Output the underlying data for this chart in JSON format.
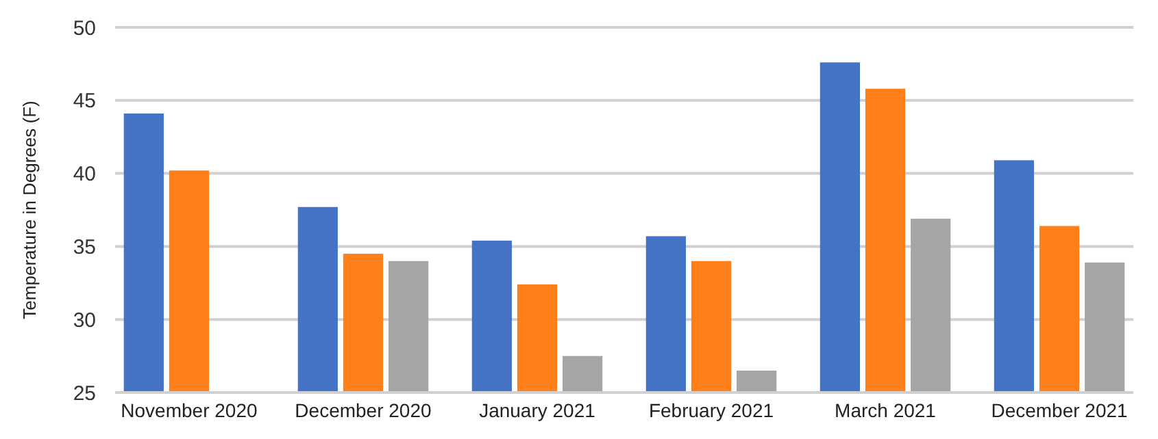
{
  "chart_data": {
    "type": "bar",
    "ylabel": "Temperature in Degrees (F)",
    "categories": [
      "November 2020",
      "December 2020",
      "January 2021",
      "February 2021",
      "March 2021",
      "December 2021"
    ],
    "series": [
      {
        "color": "#4472c4",
        "values": [
          44.1,
          37.7,
          35.4,
          35.7,
          47.6,
          40.9
        ]
      },
      {
        "color": "#ff7f1a",
        "values": [
          40.2,
          34.5,
          32.4,
          34.0,
          45.8,
          36.4
        ]
      },
      {
        "color": "#a5a5a5",
        "values": [
          null,
          34.0,
          27.5,
          26.5,
          36.9,
          33.9
        ]
      }
    ],
    "ylim": [
      25,
      50
    ],
    "yticks": [
      25,
      30,
      35,
      40,
      45,
      50
    ],
    "grid": "y"
  }
}
